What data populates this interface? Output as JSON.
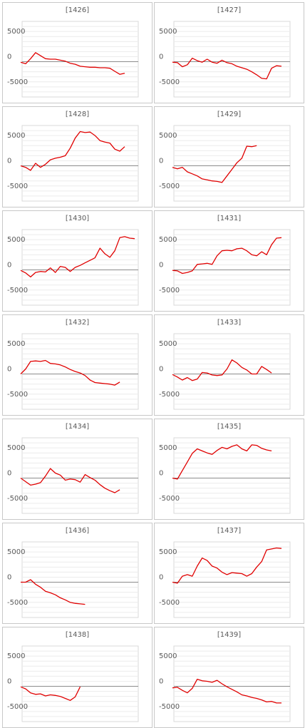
{
  "chart_data": [
    {
      "type": "line",
      "title": "1426",
      "ylim": [
        -7000,
        8000
      ],
      "yticks": [
        5000,
        0,
        -5000
      ],
      "color": "#e00000",
      "grid": true,
      "values": [
        -100,
        -400,
        600,
        1800,
        1200,
        600,
        500,
        500,
        300,
        100,
        -300,
        -500,
        -900,
        -1000,
        -1100,
        -1100,
        -1200,
        -1200,
        -1300,
        -1900,
        -2500,
        -2300
      ]
    },
    {
      "type": "line",
      "title": "1427",
      "ylim": [
        -7000,
        8000
      ],
      "yticks": [
        5000,
        0,
        -5000
      ],
      "color": "#e00000",
      "grid": true,
      "values": [
        -100,
        -200,
        -1000,
        -600,
        700,
        200,
        -100,
        500,
        -100,
        -300,
        300,
        -200,
        -400,
        -900,
        -1200,
        -1500,
        -2000,
        -2600,
        -3300,
        -3400,
        -1300,
        -800,
        -900
      ]
    },
    {
      "type": "line",
      "title": "1428",
      "ylim": [
        -7000,
        8000
      ],
      "yticks": [
        5000,
        0,
        -5000
      ],
      "color": "#e00000",
      "grid": true,
      "values": [
        0,
        -300,
        -900,
        500,
        -300,
        300,
        1200,
        1500,
        1700,
        2000,
        3500,
        5500,
        6800,
        6600,
        6700,
        6000,
        5000,
        4700,
        4500,
        3300,
        2900,
        3800
      ]
    },
    {
      "type": "line",
      "title": "1429",
      "ylim": [
        -7000,
        8000
      ],
      "yticks": [
        5000,
        0,
        -5000
      ],
      "color": "#e00000",
      "grid": true,
      "values": [
        -300,
        -600,
        -300,
        -1200,
        -1600,
        -2000,
        -2600,
        -2800,
        -3000,
        -3100,
        -3300,
        -2000,
        -700,
        600,
        1500,
        3900,
        3800,
        4000
      ]
    },
    {
      "type": "line",
      "title": "1430",
      "ylim": [
        -7000,
        8000
      ],
      "yticks": [
        5000,
        0,
        -5000
      ],
      "color": "#e00000",
      "grid": true,
      "values": [
        -100,
        -600,
        -1400,
        -500,
        -300,
        -400,
        400,
        -500,
        700,
        500,
        -300,
        500,
        900,
        1400,
        1900,
        2400,
        4300,
        3200,
        2500,
        3800,
        6400,
        6600,
        6300,
        6200
      ]
    },
    {
      "type": "line",
      "title": "1431",
      "ylim": [
        -7000,
        8000
      ],
      "yticks": [
        5000,
        0,
        -5000
      ],
      "color": "#e00000",
      "grid": true,
      "values": [
        -100,
        -200,
        -700,
        -500,
        -200,
        1100,
        1200,
        1300,
        1100,
        2800,
        3800,
        3900,
        3800,
        4200,
        4300,
        3800,
        3000,
        2800,
        3600,
        3000,
        5000,
        6300,
        6400
      ]
    },
    {
      "type": "line",
      "title": "1432",
      "ylim": [
        -7000,
        8000
      ],
      "yticks": [
        5000,
        0,
        -5000
      ],
      "color": "#e00000",
      "grid": true,
      "values": [
        0,
        1000,
        2500,
        2600,
        2500,
        2700,
        2100,
        2000,
        1800,
        1400,
        900,
        500,
        200,
        -300,
        -1200,
        -1700,
        -1800,
        -1900,
        -2000,
        -2200,
        -1600
      ]
    },
    {
      "type": "line",
      "title": "1433",
      "ylim": [
        -7000,
        8000
      ],
      "yticks": [
        5000,
        0,
        -5000
      ],
      "color": "#e00000",
      "grid": true,
      "values": [
        -100,
        -600,
        -1200,
        -700,
        -1300,
        -1000,
        300,
        200,
        -200,
        -300,
        -200,
        1000,
        2800,
        2200,
        1300,
        800,
        0,
        0,
        1500,
        900,
        200
      ]
    },
    {
      "type": "line",
      "title": "1434",
      "ylim": [
        -7000,
        8000
      ],
      "yticks": [
        5000,
        0,
        -5000
      ],
      "color": "#e00000",
      "grid": true,
      "values": [
        0,
        -700,
        -1400,
        -1200,
        -900,
        400,
        1900,
        1000,
        600,
        -400,
        -200,
        -300,
        -800,
        700,
        100,
        -400,
        -1300,
        -2000,
        -2500,
        -2900,
        -2300
      ]
    },
    {
      "type": "line",
      "title": "1435",
      "ylim": [
        -7000,
        8000
      ],
      "yticks": [
        5000,
        0,
        -5000
      ],
      "color": "#e00000",
      "grid": true,
      "values": [
        0,
        -200,
        1500,
        3200,
        4900,
        5800,
        5400,
        5000,
        4700,
        5500,
        6100,
        5800,
        6300,
        6600,
        5800,
        5400,
        6600,
        6500,
        5900,
        5600,
        5400
      ]
    },
    {
      "type": "line",
      "title": "1436",
      "ylim": [
        -7000,
        8000
      ],
      "yticks": [
        5000,
        0,
        -5000
      ],
      "color": "#e00000",
      "grid": true,
      "values": [
        0,
        0,
        500,
        -400,
        -1000,
        -1800,
        -2100,
        -2500,
        -3100,
        -3500,
        -4000,
        -4200,
        -4300,
        -4400
      ]
    },
    {
      "type": "line",
      "title": "1437",
      "ylim": [
        -7000,
        8000
      ],
      "yticks": [
        5000,
        0,
        -5000
      ],
      "color": "#e00000",
      "grid": true,
      "values": [
        0,
        -200,
        1200,
        1500,
        1200,
        3200,
        4800,
        4300,
        3200,
        2800,
        2000,
        1500,
        1900,
        1800,
        1700,
        1200,
        1700,
        3000,
        4100,
        6400,
        6600,
        6800,
        6700
      ]
    },
    {
      "type": "line",
      "title": "1438",
      "ylim": [
        -7000,
        8000
      ],
      "yticks": [
        5000,
        0,
        -5000
      ],
      "color": "#e00000",
      "grid": true,
      "values": [
        -100,
        -500,
        -1300,
        -1600,
        -1500,
        -1900,
        -1700,
        -1800,
        -2000,
        -2400,
        -2800,
        -2100,
        -100
      ]
    },
    {
      "type": "line",
      "title": "1439",
      "ylim": [
        -7000,
        8000
      ],
      "yticks": [
        5000,
        0,
        -5000
      ],
      "color": "#e00000",
      "grid": true,
      "values": [
        -300,
        -200,
        -800,
        -1300,
        -400,
        1400,
        1100,
        1000,
        800,
        1200,
        500,
        -100,
        -600,
        -1100,
        -1700,
        -1900,
        -2200,
        -2400,
        -2700,
        -3100,
        -3000,
        -3300,
        -3300
      ]
    }
  ]
}
